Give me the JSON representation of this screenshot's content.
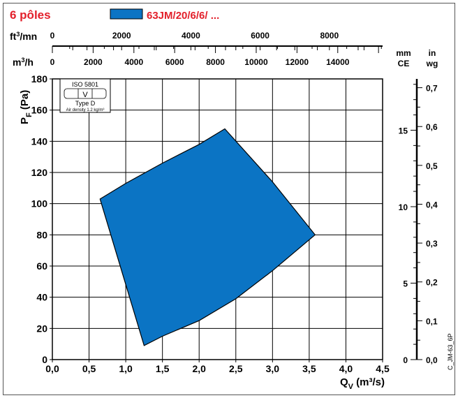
{
  "chart_data": {
    "type": "area",
    "title": "6 pôles",
    "series": [
      {
        "name": "63JM/20/6/6/ ...",
        "color": "#0b74c4",
        "points": [
          [
            0.65,
            103
          ],
          [
            1.0,
            113
          ],
          [
            1.5,
            126
          ],
          [
            2.0,
            138
          ],
          [
            2.35,
            148
          ],
          [
            3.0,
            114
          ],
          [
            3.58,
            80
          ],
          [
            3.0,
            57
          ],
          [
            2.5,
            39
          ],
          [
            2.0,
            25
          ],
          [
            1.5,
            15
          ],
          [
            1.25,
            9
          ],
          [
            0.65,
            103
          ]
        ]
      }
    ],
    "x_axis": {
      "label_main": "Q",
      "label_sub": "V",
      "label_unit": " (m³/s)",
      "range": [
        0,
        4.5
      ],
      "ticks": [
        "0,0",
        "0,5",
        "1,0",
        "1,5",
        "2,0",
        "2,5",
        "3,0",
        "3,5",
        "4,0",
        "4,5"
      ]
    },
    "y_axis": {
      "label_main": "P",
      "label_sub": "F",
      "label_unit": " (Pa)",
      "range": [
        0,
        180
      ],
      "ticks": [
        "0",
        "20",
        "40",
        "60",
        "80",
        "100",
        "120",
        "140",
        "160",
        "180"
      ]
    },
    "top_axis_ft3": {
      "unit": "ft³/mn",
      "max": 9536,
      "labels": [
        "0",
        "2000",
        "4000",
        "6000",
        "8000"
      ]
    },
    "top_axis_m3h": {
      "unit": "m³/h",
      "max": 16200,
      "labels": [
        "0",
        "2000",
        "4000",
        "6000",
        "8000",
        "10000",
        "12000",
        "14000"
      ]
    },
    "right_axis_mmce": {
      "unit_line1": "mm",
      "unit_line2": "CE",
      "labels": [
        "0",
        "5",
        "10",
        "15"
      ]
    },
    "right_axis_inwg": {
      "unit_line1": "in",
      "unit_line2": "wg",
      "labels": [
        "0,0",
        "0,1",
        "0,2",
        "0,3",
        "0,4",
        "0,5",
        "0,6",
        "0,7"
      ]
    },
    "grid": true,
    "legend": "top",
    "iso_box": {
      "line1": "ISO 5801",
      "line2": "V",
      "line3": "Type D",
      "line4": "Air density 1.2 kg/m³"
    },
    "reference": "C_JM-63_6P"
  },
  "colors": {
    "title": "#e3202b",
    "series_fill": "#0b74c4",
    "series_stroke": "#000000"
  }
}
